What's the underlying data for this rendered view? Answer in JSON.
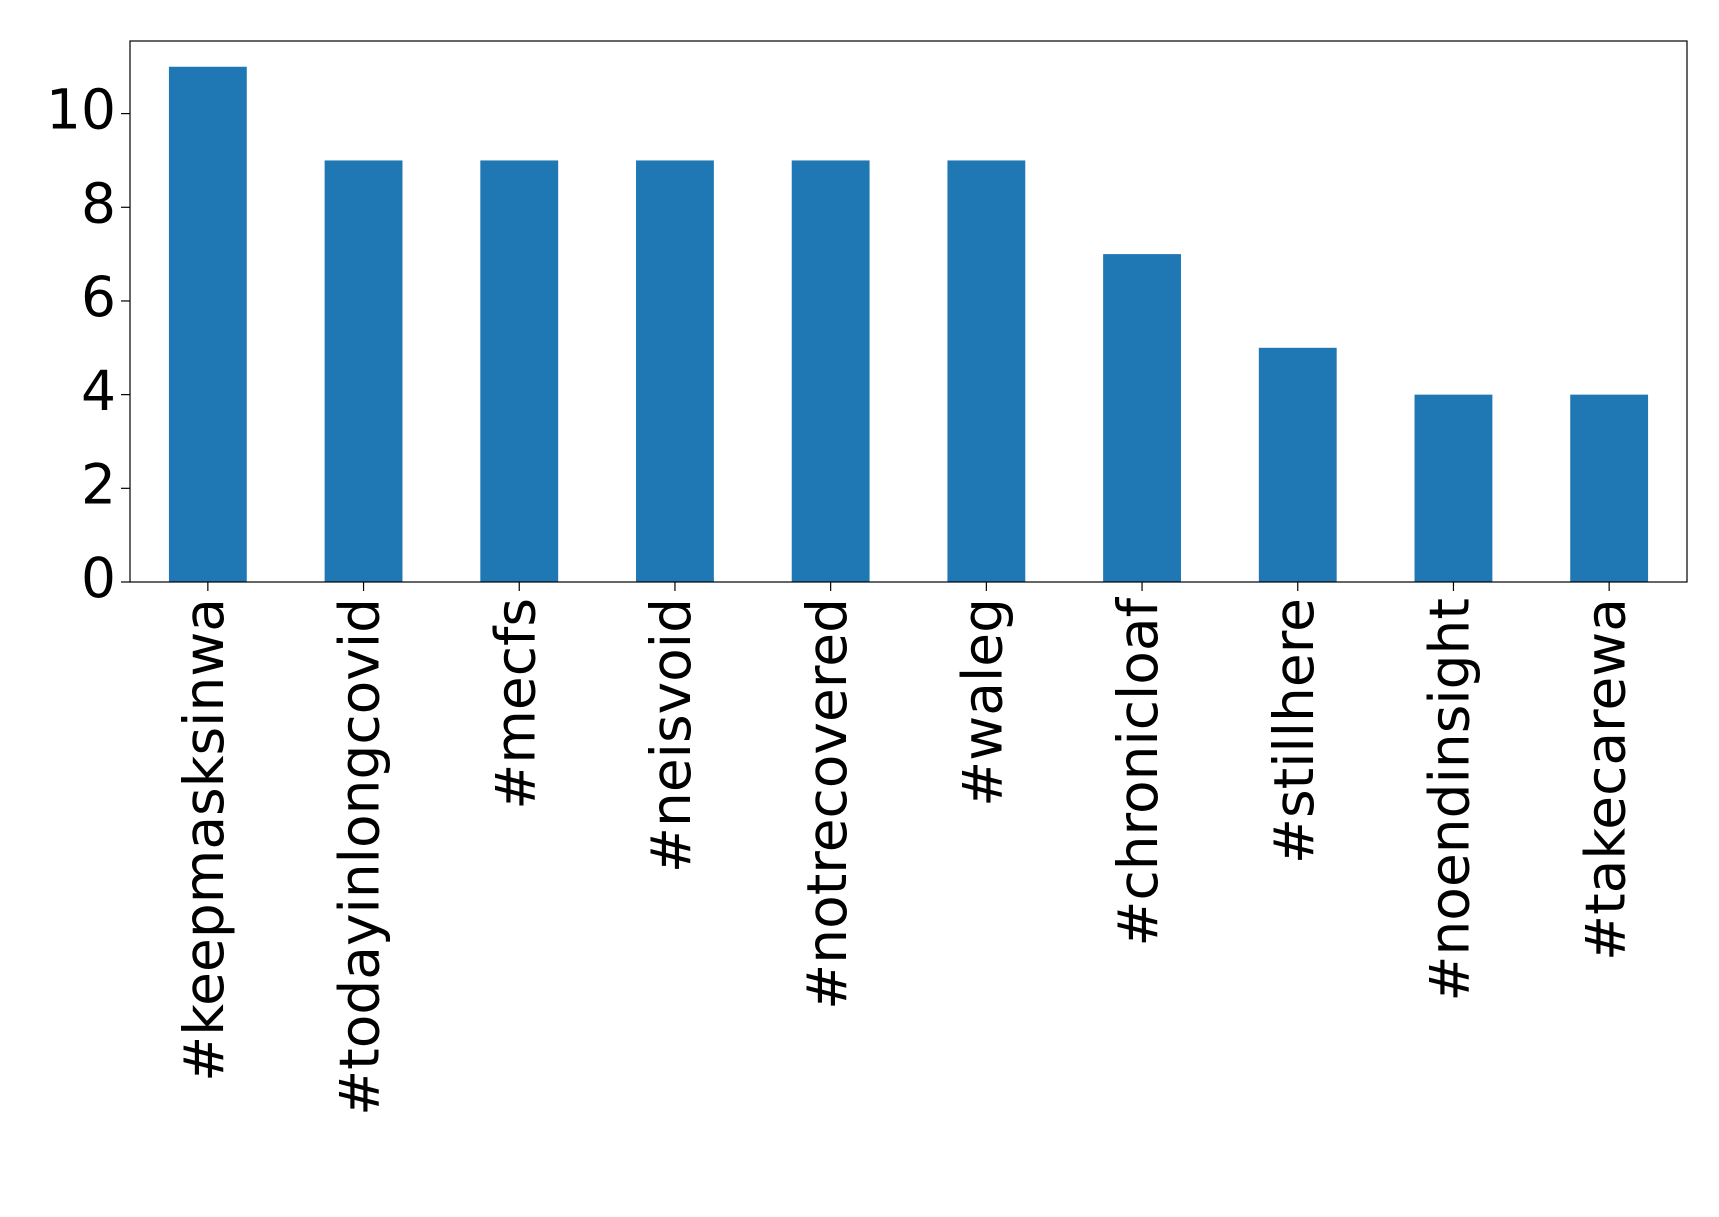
{
  "chart_data": {
    "type": "bar",
    "categories": [
      "#keepmasksinwa",
      "#todayinlongcovid",
      "#mecfs",
      "#neisvoid",
      "#notrecovered",
      "#waleg",
      "#chronicloaf",
      "#stillhere",
      "#noendinsight",
      "#takecarewa"
    ],
    "values": [
      11,
      9,
      9,
      9,
      9,
      9,
      7,
      5,
      4,
      4
    ],
    "color": "#1f77b4",
    "ylim": [
      0,
      11.55
    ],
    "yticks": [
      0,
      2,
      4,
      6,
      8,
      10
    ],
    "grid": false
  }
}
